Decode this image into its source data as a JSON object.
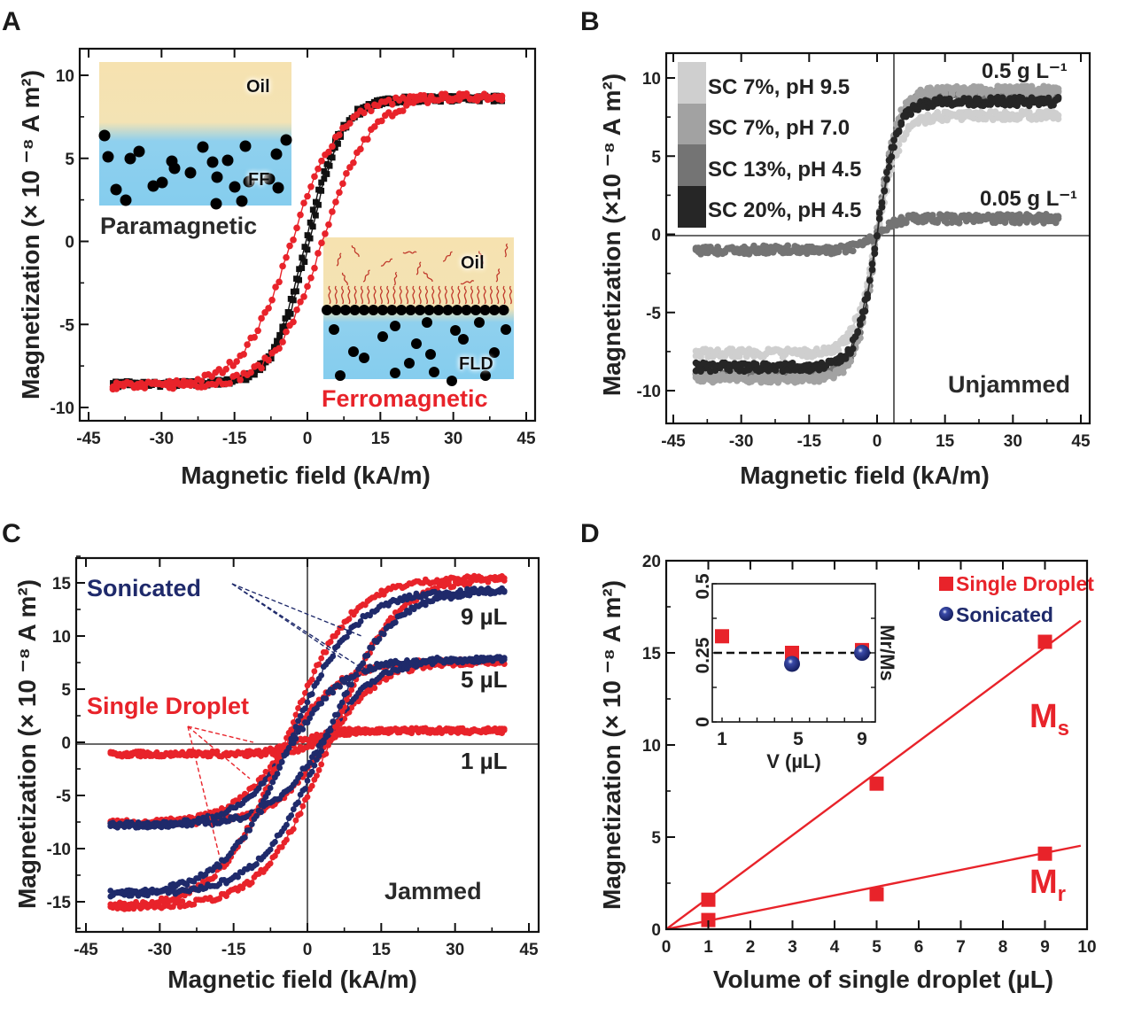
{
  "figure": {
    "panels": [
      "A",
      "B",
      "C",
      "D"
    ]
  },
  "colors": {
    "red": "#e8232a",
    "black": "#111111",
    "navy": "#1f2a6b",
    "oil": "#f6e2b0",
    "water": "#85cdee",
    "b_series": [
      "#cfcfcf",
      "#a2a2a2",
      "#747474",
      "#262626"
    ]
  },
  "chart_data": [
    {
      "panel": "A",
      "type": "scatter",
      "xlabel": "Magnetic field (kA/m)",
      "ylabel": "Magnetization (× 10⁻⁸ A m²)",
      "xlim": [
        -45,
        45
      ],
      "ylim": [
        -10,
        10
      ],
      "xticks": [
        -45,
        -30,
        -15,
        0,
        15,
        30,
        45
      ],
      "yticks": [
        -10,
        -5,
        0,
        5,
        10
      ],
      "series": [
        {
          "name": "Paramagnetic (FF)",
          "color": "black",
          "marker": "square",
          "x_range": [
            -40,
            40
          ],
          "Ms": 8.6,
          "Hc": 0.3,
          "width": 7
        },
        {
          "name": "Ferromagnetic (FLD)",
          "color": "red",
          "marker": "circle",
          "x_range": [
            -40,
            40
          ],
          "Ms": 8.7,
          "Hc": 3.2,
          "width": 10
        }
      ],
      "insets": [
        {
          "name": "paramagnetic",
          "top_label": "Oil",
          "bottom_label": "FF",
          "caption": "Paramagnetic"
        },
        {
          "name": "ferromagnetic",
          "top_label": "Oil",
          "bottom_label": "FLD",
          "caption": "Ferromagnetic"
        }
      ]
    },
    {
      "panel": "B",
      "type": "scatter",
      "xlabel": "Magnetic field (kA/m)",
      "ylabel": "Magnetization (×10⁻⁸ A m²)",
      "xlim": [
        -47,
        47
      ],
      "ylim": [
        -12,
        12
      ],
      "xticks": [
        -45,
        -30,
        -15,
        0,
        15,
        30,
        45
      ],
      "yticks": [
        -10,
        -5,
        0,
        5,
        10
      ],
      "legend": [
        "SC 7%, pH 9.5",
        "SC 7%, pH 7.0",
        "SC 13%, pH 4.5",
        "SC 20%, pH 4.5"
      ],
      "legend_position": "top-left",
      "series": [
        {
          "name": "SC 7%, pH 9.5",
          "Ms": 7.6,
          "width": 5
        },
        {
          "name": "SC 7%, pH 7.0",
          "Ms": 9.2,
          "width": 4.5
        },
        {
          "name": "SC 13%, pH 4.5",
          "Ms": 9.0,
          "width": 4.5
        },
        {
          "name": "SC 20%, pH 4.5",
          "Ms": 8.5,
          "width": 4.5
        },
        {
          "name": "0.05 g/L (SC 13%, pH 4.5)",
          "Ms": 1.0,
          "width": 4
        }
      ],
      "annotations": [
        "0.5 g L⁻¹",
        "0.05 g L⁻¹",
        "Unjammed"
      ]
    },
    {
      "panel": "C",
      "type": "scatter",
      "xlabel": "Magnetic field (kA/m)",
      "ylabel": "Magnetization (× 10⁻⁸ A m²)",
      "xlim": [
        -47,
        47
      ],
      "ylim": [
        -18,
        18
      ],
      "xticks": [
        -45,
        -30,
        -15,
        0,
        15,
        30,
        45
      ],
      "yticks": [
        -15,
        -10,
        -5,
        0,
        5,
        10,
        15
      ],
      "series": [
        {
          "name": "Single Droplet 9 µL",
          "color": "red",
          "Ms": 15.5,
          "Hc": 4.5,
          "width": 13
        },
        {
          "name": "Sonicated 9 µL",
          "color": "navy",
          "Ms": 14.3,
          "Hc": 3.5,
          "width": 13
        },
        {
          "name": "Single Droplet 5 µL",
          "color": "red",
          "Ms": 7.6,
          "Hc": 4.0,
          "width": 11
        },
        {
          "name": "Sonicated 5 µL",
          "color": "navy",
          "Ms": 7.8,
          "Hc": 3.0,
          "width": 11
        },
        {
          "name": "Single Droplet 1 µL",
          "color": "red",
          "Ms": 1.1,
          "Hc": 2.0,
          "width": 6
        }
      ],
      "annotations": [
        "Sonicated",
        "Single Droplet",
        "9 µL",
        "5 µL",
        "1 µL",
        "Jammed"
      ]
    },
    {
      "panel": "D",
      "type": "scatter",
      "xlabel": "Volume of single droplet (µL)",
      "ylabel": "Magnetization (× 10⁻⁸ A m²)",
      "xlim": [
        0,
        10
      ],
      "ylim": [
        0,
        20
      ],
      "xticks": [
        0,
        1,
        2,
        3,
        4,
        5,
        6,
        7,
        8,
        9,
        10
      ],
      "yticks": [
        0,
        5,
        10,
        15,
        20
      ],
      "series": [
        {
          "name": "Ms",
          "x": [
            1,
            5,
            9
          ],
          "y": [
            1.6,
            7.9,
            15.6
          ],
          "fit_slope": 1.7
        },
        {
          "name": "Mr",
          "x": [
            1,
            5,
            9
          ],
          "y": [
            0.5,
            1.9,
            4.1
          ],
          "fit_slope": 0.46
        }
      ],
      "legend": [
        "Single Droplet",
        "Sonicated"
      ],
      "legend_position": "top-right",
      "annotations": [
        "Ms",
        "Mr"
      ],
      "inset": {
        "xlabel": "V (µL)",
        "ylabel": "Mr/Ms",
        "xlim": [
          0.5,
          9.5
        ],
        "ylim": [
          0,
          0.5
        ],
        "xticks": [
          1,
          5,
          9
        ],
        "yticks": [
          0,
          0.25,
          0.5
        ],
        "reference_line": 0.25,
        "series": [
          {
            "name": "Single Droplet",
            "x": [
              1,
              5,
              9
            ],
            "y": [
              0.31,
              0.25,
              0.26
            ]
          },
          {
            "name": "Sonicated",
            "x": [
              5,
              9
            ],
            "y": [
              0.21,
              0.25
            ]
          }
        ]
      }
    }
  ],
  "labels": {
    "A": {
      "letter": "A",
      "xlabel": "Magnetic field (kA/m)",
      "ylabel": "Magnetization (× 10 ⁻⁸  A m²)",
      "xticks": [
        "-45",
        "-30",
        "-15",
        "0",
        "15",
        "30",
        "45"
      ],
      "yticks": [
        "10",
        "5",
        "0",
        "-5",
        "-10"
      ],
      "inset1_top": "Oil",
      "inset1_bottom": "FF",
      "inset1_caption": "Paramagnetic",
      "inset2_top": "Oil",
      "inset2_bottom": "FLD",
      "inset2_caption": "Ferromagnetic"
    },
    "B": {
      "letter": "B",
      "xlabel": "Magnetic field (kA/m)",
      "ylabel": "Magnetization (×10 ⁻⁸ A m²)",
      "xticks": [
        "-45",
        "-30",
        "-15",
        "0",
        "15",
        "30",
        "45"
      ],
      "yticks": [
        "10",
        "5",
        "0",
        "-5",
        "-10"
      ],
      "legend": [
        "SC 7%, pH 9.5",
        "SC 7%, pH 7.0",
        "SC 13%, pH 4.5",
        "SC 20%, pH 4.5"
      ],
      "conc_high": "0.5 g L⁻¹",
      "conc_low": "0.05 g L⁻¹",
      "state": "Unjammed"
    },
    "C": {
      "letter": "C",
      "xlabel": "Magnetic field (kA/m)",
      "ylabel": "Magnetization (× 10 ⁻⁸ A m²)",
      "xticks": [
        "-45",
        "-30",
        "-15",
        "0",
        "15",
        "30",
        "45"
      ],
      "yticks": [
        "15",
        "10",
        "5",
        "0",
        "-5",
        "-10",
        "-15"
      ],
      "sonicated": "Sonicated",
      "single": "Single Droplet",
      "v9": "9 µL",
      "v5": "5 µL",
      "v1": "1 µL",
      "state": "Jammed"
    },
    "D": {
      "letter": "D",
      "xlabel": "Volume of single droplet (µL)",
      "ylabel": "Magnetization (× 10 ⁻⁸ A m²)",
      "xticks": [
        "0",
        "1",
        "2",
        "3",
        "4",
        "5",
        "6",
        "7",
        "8",
        "9",
        "10"
      ],
      "yticks": [
        "20",
        "15",
        "10",
        "5",
        "0"
      ],
      "legend_single": "Single Droplet",
      "legend_sonicated": "Sonicated",
      "ms": "M",
      "ms_sub": "s",
      "mr": "M",
      "mr_sub": "r",
      "inset_xlabel": "V (µL)",
      "inset_ylabel": "Mr/Ms",
      "inset_xticks": [
        "1",
        "5",
        "9"
      ],
      "inset_yticks": [
        "0",
        "0.25",
        "0.5"
      ]
    }
  }
}
